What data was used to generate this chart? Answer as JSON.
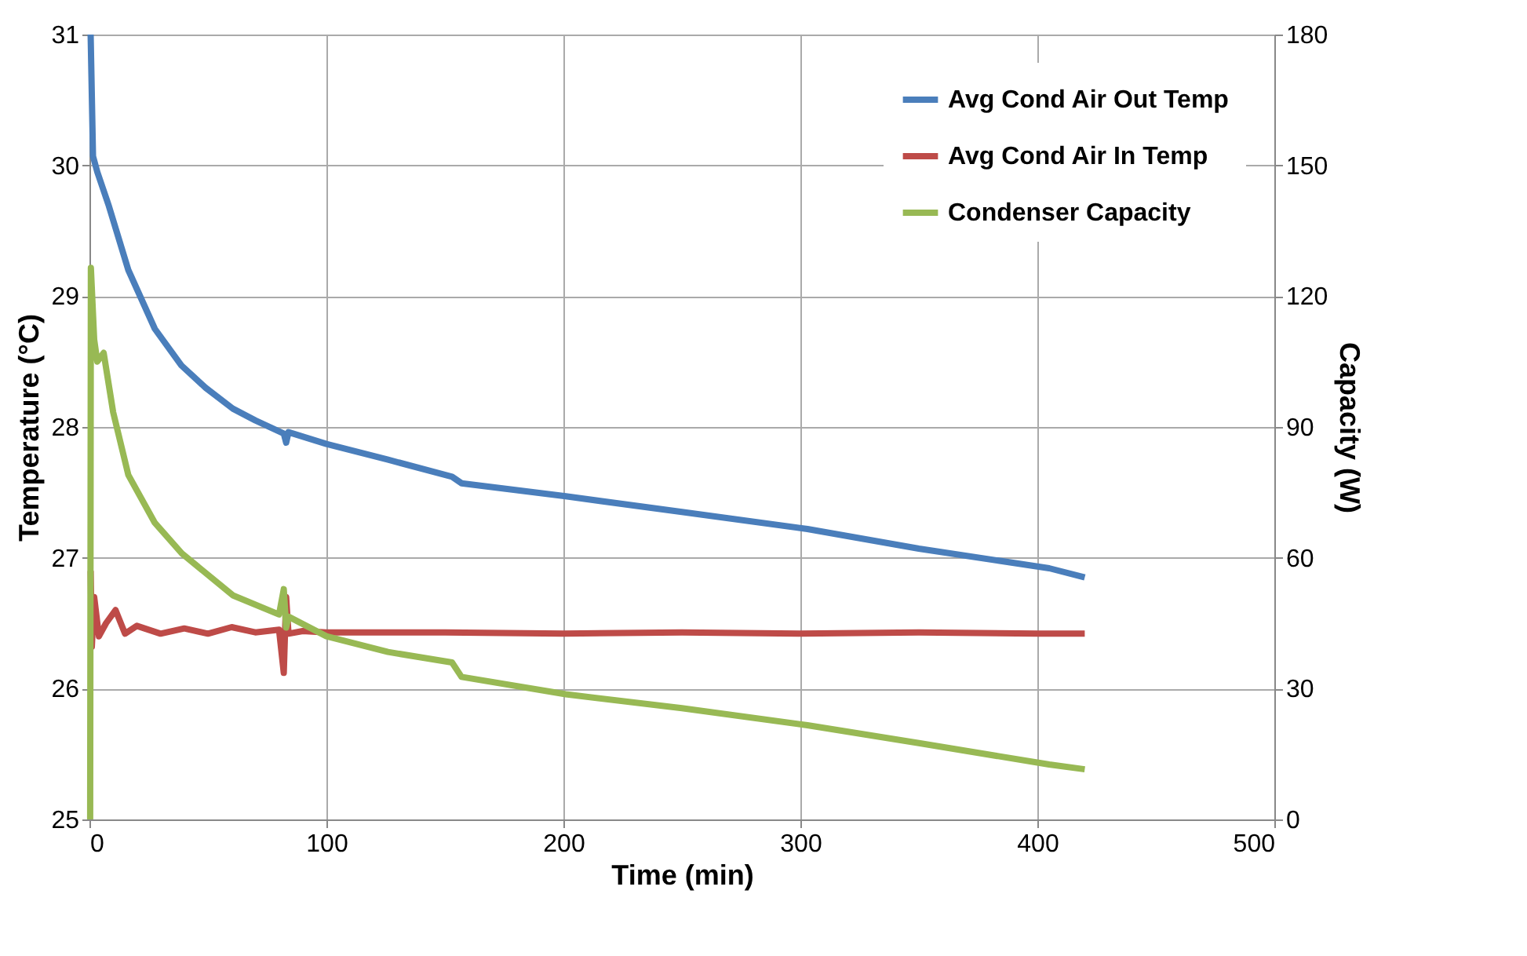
{
  "chart_data": {
    "type": "line",
    "xlabel": "Time (min)",
    "ylabel": "Temperature (°C)",
    "y2label": "Capacity (W)",
    "xlim": [
      0,
      500
    ],
    "xticks": [
      0,
      100,
      200,
      300,
      400,
      500
    ],
    "ylim": [
      25,
      31
    ],
    "yticks": [
      25,
      26,
      27,
      28,
      29,
      30,
      31
    ],
    "y2lim": [
      0,
      180
    ],
    "y2ticks": [
      0,
      30,
      60,
      90,
      120,
      150,
      180
    ],
    "grid": true,
    "legend": "top right",
    "line_style": "solid",
    "marker": "none",
    "series": [
      {
        "name": "Avg Cond Air Out Temp",
        "color": "#4a7ebb",
        "x": [
          0.5,
          1.5,
          3.3,
          8,
          16.4,
          27.6,
          38.8,
          49,
          60.5,
          70,
          82,
          83,
          84,
          100,
          126,
          153,
          157,
          201,
          250,
          303,
          350,
          405,
          420
        ],
        "values": [
          31,
          30.07,
          29.95,
          29.7,
          29.2,
          28.75,
          28.47,
          28.3,
          28.14,
          28.05,
          27.95,
          27.88,
          27.96,
          27.87,
          27.75,
          27.62,
          27.57,
          27.47,
          27.35,
          27.22,
          27.07,
          26.92,
          26.85
        ]
      },
      {
        "name": "Avg Cond Air In Temp",
        "color": "#be4b48",
        "x": [
          0.5,
          1,
          2,
          4,
          7,
          11,
          15,
          20,
          30,
          40,
          50,
          60,
          70,
          80,
          82,
          83,
          84,
          90,
          100,
          150,
          200,
          250,
          300,
          350,
          400,
          420
        ],
        "values": [
          26.9,
          26.32,
          26.7,
          26.4,
          26.5,
          26.6,
          26.42,
          26.48,
          26.42,
          26.46,
          26.42,
          26.47,
          26.43,
          26.45,
          26.12,
          26.7,
          26.42,
          26.44,
          26.43,
          26.43,
          26.42,
          26.43,
          26.42,
          26.43,
          26.42,
          26.42
        ]
      },
      {
        "name": "Condenser Capacity",
        "color": "#98b954",
        "axis": "y2",
        "x": [
          0.3,
          0.6,
          2,
          3.3,
          6,
          10,
          16.4,
          27.6,
          39,
          60.5,
          80,
          82,
          83,
          84,
          100,
          126,
          153,
          157,
          201,
          250,
          303,
          350,
          405,
          420
        ],
        "values": [
          0,
          126.5,
          110,
          105,
          107,
          93.4,
          79,
          68,
          61,
          51.4,
          47,
          52.8,
          44,
          46.5,
          42,
          38.4,
          36,
          32.7,
          28.7,
          25.5,
          21.6,
          17.5,
          12.6,
          11.5
        ]
      }
    ]
  }
}
